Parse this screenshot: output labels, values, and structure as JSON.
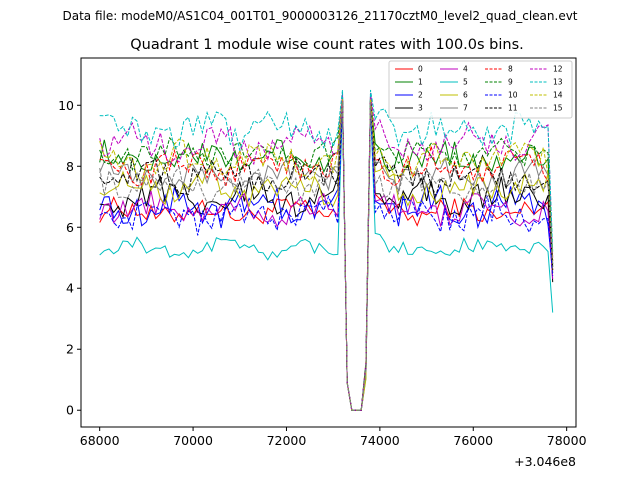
{
  "figure": {
    "suptitle": "Data file: modeM0/AS1C04_001T01_9000003126_21170cztM0_level2_quad_clean.evt"
  },
  "chart_data": {
    "type": "line",
    "title": "Quadrant 1 module wise count rates with 100.0s bins.",
    "xlabel": "",
    "ylabel": "",
    "x_offset_label": "+3.046e8",
    "xlim": [
      67600,
      78200
    ],
    "ylim": [
      -0.55,
      11.55
    ],
    "x_ticks": [
      68000,
      70000,
      72000,
      74000,
      76000,
      78000
    ],
    "x_tick_labels": [
      "68000",
      "70000",
      "72000",
      "74000",
      "76000",
      "78000"
    ],
    "y_ticks": [
      0,
      2,
      4,
      6,
      8,
      10
    ],
    "y_tick_labels": [
      "0",
      "2",
      "4",
      "6",
      "8",
      "10"
    ],
    "grid": false,
    "legend": {
      "placement": "top-right",
      "columns": 4
    },
    "x_start": 68000,
    "x_step": 100,
    "x_end": 77700,
    "gap": {
      "pre_drop_x": 73200,
      "floor_x": [
        73400,
        73500,
        73600
      ],
      "recover_x": 73800
    },
    "series": [
      {
        "name": "0",
        "color": "#ff0000",
        "dash": "solid",
        "mean": 6.5,
        "spread": 0.35,
        "peak": 10.2,
        "end": 4.6
      },
      {
        "name": "1",
        "color": "#008000",
        "dash": "solid",
        "mean": 8.3,
        "spread": 0.4,
        "peak": 10.2,
        "end": 4.7
      },
      {
        "name": "2",
        "color": "#0000ff",
        "dash": "solid",
        "mean": 6.7,
        "spread": 0.5,
        "peak": 10.2,
        "end": 4.5
      },
      {
        "name": "3",
        "color": "#000000",
        "dash": "solid",
        "mean": 7.0,
        "spread": 0.45,
        "peak": 10.3,
        "end": 4.2
      },
      {
        "name": "4",
        "color": "#bf00bf",
        "dash": "solid",
        "mean": 6.6,
        "spread": 0.4,
        "peak": 10.1,
        "end": 4.3
      },
      {
        "name": "5",
        "color": "#00bfbf",
        "dash": "solid",
        "mean": 5.3,
        "spread": 0.25,
        "peak": 10.0,
        "end": 3.2
      },
      {
        "name": "6",
        "color": "#bfbf00",
        "dash": "solid",
        "mean": 7.3,
        "spread": 0.45,
        "peak": 10.2,
        "end": 4.5
      },
      {
        "name": "7",
        "color": "#808080",
        "dash": "solid",
        "mean": 7.7,
        "spread": 0.4,
        "peak": 10.2,
        "end": 4.8
      },
      {
        "name": "8",
        "color": "#ff0000",
        "dash": "dashed",
        "mean": 8.0,
        "spread": 0.45,
        "peak": 10.3,
        "end": 4.9
      },
      {
        "name": "9",
        "color": "#008000",
        "dash": "dashed",
        "mean": 8.4,
        "spread": 0.4,
        "peak": 10.2,
        "end": 4.8
      },
      {
        "name": "10",
        "color": "#0000ff",
        "dash": "dashed",
        "mean": 6.4,
        "spread": 0.45,
        "peak": 10.0,
        "end": 4.4
      },
      {
        "name": "11",
        "color": "#000000",
        "dash": "dashed",
        "mean": 7.7,
        "spread": 0.45,
        "peak": 10.3,
        "end": 4.6
      },
      {
        "name": "12",
        "color": "#bf00bf",
        "dash": "dashed",
        "mean": 8.8,
        "spread": 0.5,
        "peak": 10.4,
        "end": 5.0
      },
      {
        "name": "13",
        "color": "#00bfbf",
        "dash": "dashed",
        "mean": 9.2,
        "spread": 0.55,
        "peak": 10.5,
        "end": 5.2
      },
      {
        "name": "14",
        "color": "#bfbf00",
        "dash": "dashed",
        "mean": 8.2,
        "spread": 0.5,
        "peak": 10.2,
        "end": 4.9
      },
      {
        "name": "15",
        "color": "#808080",
        "dash": "dashed",
        "mean": 7.4,
        "spread": 0.45,
        "peak": 10.1,
        "end": 4.7
      }
    ]
  }
}
